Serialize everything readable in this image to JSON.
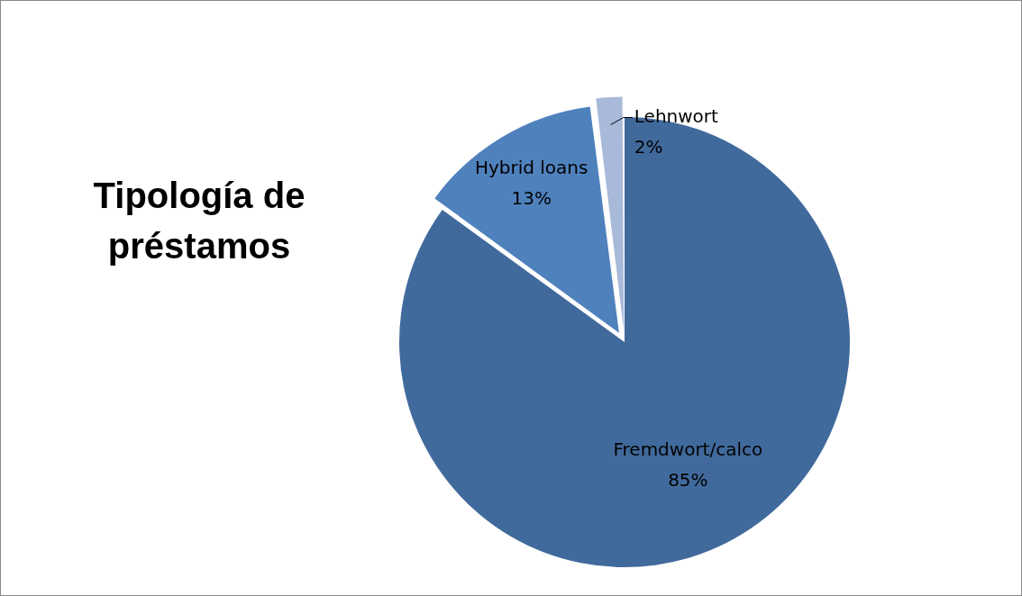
{
  "chart_data": {
    "type": "pie",
    "title": "Tipología de préstamos",
    "categories": [
      "Fremdwort/calco",
      "Hybrid loans",
      "Lehnwort"
    ],
    "values": [
      85,
      13,
      2
    ],
    "value_labels": [
      "85%",
      "13%",
      "2%"
    ],
    "colors": [
      "#416a9c",
      "#4f81bd",
      "#a8b9da"
    ]
  }
}
